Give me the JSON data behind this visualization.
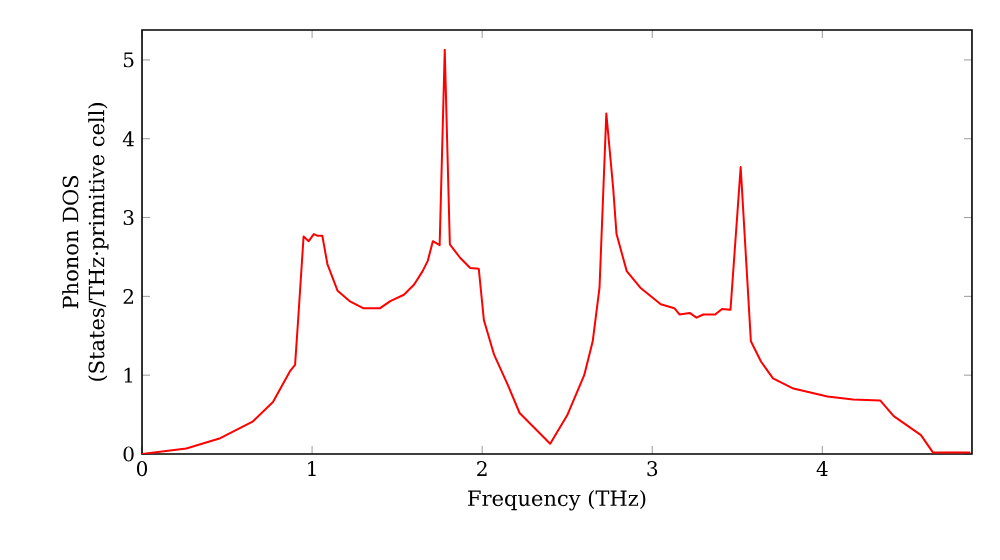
{
  "chart_data": {
    "type": "line",
    "xlabel": "Frequency (THz)",
    "ylabel": "Phonon DOS\n(States/THz·primitive cell)",
    "xlim": [
      0,
      4.88
    ],
    "ylim": [
      0,
      5.38
    ],
    "xticks": [
      0,
      1,
      2,
      3,
      4
    ],
    "yticks": [
      0,
      1,
      2,
      3,
      4,
      5
    ],
    "grid": false,
    "marker": "none",
    "line_style": "solid",
    "series": [
      {
        "color": "#ff0000",
        "x": [
          0,
          0.26,
          0.46,
          0.65,
          0.77,
          0.87,
          0.9,
          0.92,
          0.95,
          0.98,
          1.01,
          1.03,
          1.06,
          1.09,
          1.15,
          1.22,
          1.3,
          1.4,
          1.46,
          1.54,
          1.6,
          1.65,
          1.68,
          1.71,
          1.75,
          1.78,
          1.81,
          1.87,
          1.93,
          1.98,
          2.01,
          2.07,
          2.15,
          2.22,
          2.4,
          2.5,
          2.6,
          2.65,
          2.69,
          2.73,
          2.77,
          2.79,
          2.85,
          2.93,
          3.05,
          3.13,
          3.16,
          3.22,
          3.26,
          3.3,
          3.37,
          3.41,
          3.46,
          3.52,
          3.58,
          3.64,
          3.71,
          3.83,
          4.03,
          4.18,
          4.34,
          4.42,
          4.58,
          4.65,
          4.87
        ],
        "values": [
          0,
          0.07,
          0.2,
          0.41,
          0.66,
          1.05,
          1.13,
          1.77,
          2.76,
          2.7,
          2.79,
          2.77,
          2.77,
          2.41,
          2.07,
          1.94,
          1.85,
          1.85,
          1.94,
          2.02,
          2.15,
          2.32,
          2.45,
          2.7,
          2.65,
          5.13,
          2.66,
          2.49,
          2.36,
          2.35,
          1.7,
          1.26,
          0.88,
          0.52,
          0.13,
          0.49,
          1.0,
          1.43,
          2.11,
          4.32,
          3.38,
          2.79,
          2.32,
          2.11,
          1.9,
          1.85,
          1.77,
          1.79,
          1.73,
          1.77,
          1.77,
          1.84,
          1.83,
          3.64,
          1.43,
          1.17,
          0.96,
          0.83,
          0.73,
          0.69,
          0.68,
          0.48,
          0.24,
          0.02,
          0.02
        ]
      }
    ]
  }
}
